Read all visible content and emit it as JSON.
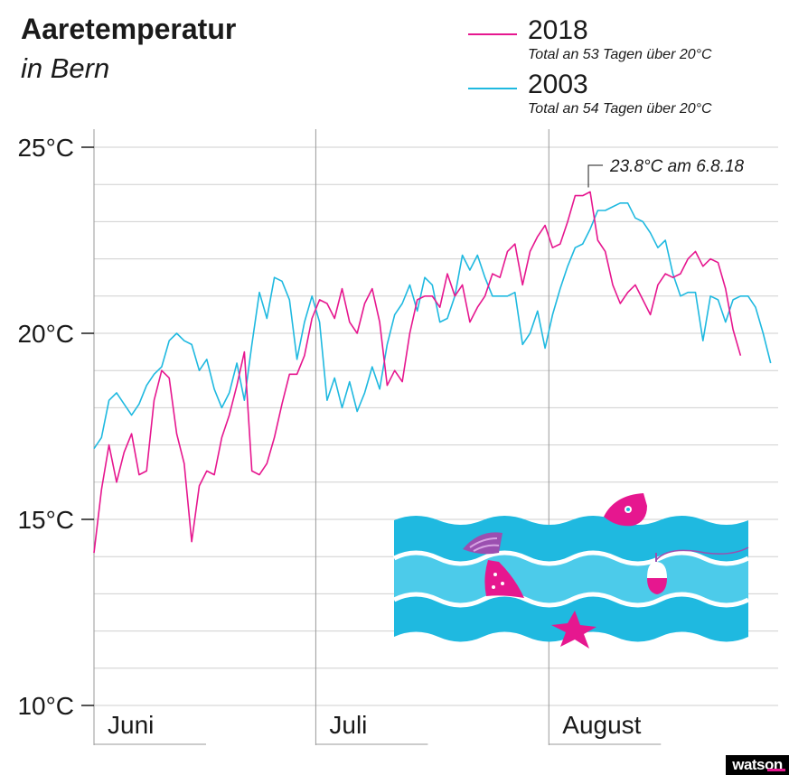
{
  "header": {
    "title": "Aaretemperatur",
    "subtitle": "in Bern"
  },
  "legend": [
    {
      "year": "2018",
      "note": "Total an 53 Tagen über 20°C",
      "color": "#e6178f"
    },
    {
      "year": "2003",
      "note": "Total an 54 Tagen über 20°C",
      "color": "#1fb9e0"
    }
  ],
  "brand": {
    "logo": "watson",
    "accent": "#e6178f"
  },
  "chart_data": {
    "type": "line",
    "x_unit": "day of summer (1 = 1 June)",
    "xlim": [
      1,
      92
    ],
    "ylim": [
      10,
      25
    ],
    "yticks": [
      10,
      15,
      20,
      25
    ],
    "ytick_labels": [
      "10°C",
      "15°C",
      "20°C",
      "25°C"
    ],
    "grid": "horizontal every 1°C",
    "months": [
      {
        "label": "Juni",
        "start": 1
      },
      {
        "label": "Juli",
        "start": 31
      },
      {
        "label": "August",
        "start": 62
      }
    ],
    "annotation": {
      "text": "23.8°C am 6.8.18",
      "series": "2018",
      "x": 67,
      "y": 23.8
    },
    "series": [
      {
        "name": "2018",
        "color": "#e6178f",
        "x_start": 1,
        "values": [
          14.1,
          15.8,
          17.0,
          16.0,
          16.8,
          17.3,
          16.2,
          16.3,
          18.2,
          19.0,
          18.8,
          17.3,
          16.5,
          14.4,
          15.9,
          16.3,
          16.2,
          17.2,
          17.8,
          18.6,
          19.5,
          16.3,
          16.2,
          16.5,
          17.2,
          18.1,
          18.9,
          18.9,
          19.4,
          20.4,
          20.9,
          20.8,
          20.4,
          21.2,
          20.3,
          20.0,
          20.8,
          21.2,
          20.3,
          18.6,
          19.0,
          18.7,
          20.0,
          20.9,
          21.0,
          21.0,
          20.7,
          21.6,
          21.0,
          21.3,
          20.3,
          20.7,
          21.0,
          21.6,
          21.5,
          22.2,
          22.4,
          21.3,
          22.2,
          22.6,
          22.9,
          22.3,
          22.4,
          23.0,
          23.7,
          23.7,
          23.8,
          22.5,
          22.2,
          21.3,
          20.8,
          21.1,
          21.3,
          20.9,
          20.5,
          21.3,
          21.6,
          21.5,
          21.6,
          22.0,
          22.2,
          21.8,
          22.0,
          21.9,
          21.2,
          20.1,
          19.4
        ]
      },
      {
        "name": "2003",
        "color": "#1fb9e0",
        "x_start": 1,
        "values": [
          16.9,
          17.2,
          18.2,
          18.4,
          18.1,
          17.8,
          18.1,
          18.6,
          18.9,
          19.1,
          19.8,
          20.0,
          19.8,
          19.7,
          19.0,
          19.3,
          18.5,
          18.0,
          18.4,
          19.2,
          18.2,
          19.7,
          21.1,
          20.4,
          21.5,
          21.4,
          20.9,
          19.3,
          20.3,
          21.0,
          20.3,
          18.2,
          18.8,
          18.0,
          18.7,
          17.9,
          18.4,
          19.1,
          18.5,
          19.7,
          20.5,
          20.8,
          21.3,
          20.6,
          21.5,
          21.3,
          20.3,
          20.4,
          21.0,
          22.1,
          21.7,
          22.1,
          21.5,
          21.0,
          21.0,
          21.0,
          21.1,
          19.7,
          20.0,
          20.6,
          19.6,
          20.5,
          21.2,
          21.8,
          22.3,
          22.4,
          22.8,
          23.3,
          23.3,
          23.4,
          23.5,
          23.5,
          23.1,
          23.0,
          22.7,
          22.3,
          22.5,
          21.6,
          21.0,
          21.1,
          21.1,
          19.8,
          21.0,
          20.9,
          20.3,
          20.9,
          21.0,
          21.0,
          20.7,
          20.0,
          19.2
        ]
      }
    ]
  }
}
